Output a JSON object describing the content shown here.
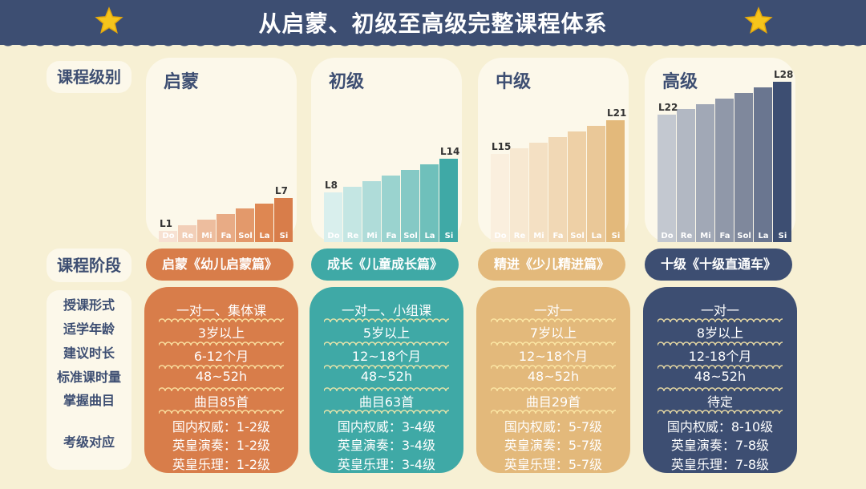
{
  "title": "从启蒙、初级至高级完整课程体系",
  "labels": {
    "level": "课程级别",
    "stage": "课程阶段",
    "rows": [
      "授课形式",
      "适学年龄",
      "建议时长",
      "标准课时量",
      "掌握曲目",
      "考级对应"
    ]
  },
  "notes": [
    "Do",
    "Re",
    "Mi",
    "Fa",
    "Sol",
    "La",
    "Si"
  ],
  "levels": [
    {
      "name": "启蒙",
      "start": "L1",
      "end": "L7",
      "stage": "启蒙《幼儿启蒙篇》",
      "format": "一对一、集体课",
      "age": "3岁以上",
      "duration": "6-12个月",
      "hours": "48~52h",
      "songs": "曲目85首",
      "exam1": "国内权威：1-2级",
      "exam2": "英皇演奏：1-2级",
      "exam3": "英皇乐理：1-2级",
      "color": "#d87d4a",
      "bar_colors": [
        "#f7e1d2",
        "#f2cfb8",
        "#edbd9e",
        "#e8ab85",
        "#e3996b",
        "#de8752",
        "#d87d4a"
      ],
      "bar_levels": [
        1,
        2,
        3,
        4,
        5,
        6,
        7
      ]
    },
    {
      "name": "初级",
      "start": "L8",
      "end": "L14",
      "stage": "成长《儿童成长篇》",
      "format": "一对一、小组课",
      "age": "5岁以上",
      "duration": "12~18个月",
      "hours": "48~52h",
      "songs": "曲目63首",
      "exam1": "国内权威：3-4级",
      "exam2": "英皇演奏：3-4级",
      "exam3": "英皇乐理：3-4级",
      "color": "#3fa9a6",
      "bar_colors": [
        "#d9efed",
        "#c4e6e3",
        "#afdcd9",
        "#9ad3cf",
        "#85c9c5",
        "#6fc0bb",
        "#3fa9a6"
      ],
      "bar_levels": [
        8,
        9,
        10,
        11,
        12,
        13,
        14
      ]
    },
    {
      "name": "中级",
      "start": "L15",
      "end": "L21",
      "stage": "精进《少儿精进篇》",
      "format": "一对一",
      "age": "7岁以上",
      "duration": "12~18个月",
      "hours": "48~52h",
      "songs": "曲目29首",
      "exam1": "国内权威：5-7级",
      "exam2": "英皇演奏：5-7级",
      "exam3": "英皇乐理：5-7级",
      "color": "#e3b97b",
      "bar_colors": [
        "#faefde",
        "#f7e8d1",
        "#f4e0c3",
        "#f1d8b5",
        "#eed0a6",
        "#eac898",
        "#e3b97b"
      ],
      "bar_levels": [
        15,
        16,
        17,
        18,
        19,
        20,
        21
      ]
    },
    {
      "name": "高级",
      "start": "L22",
      "end": "L28",
      "stage": "十级《十级直通车》",
      "format": "一对一",
      "age": "8岁以上",
      "duration": "12-18个月",
      "hours": "48~52h",
      "songs": "待定",
      "exam1": "国内权威：8-10级",
      "exam2": "英皇演奏：7-8级",
      "exam3": "英皇乐理：7-8级",
      "color": "#3d4e72",
      "bar_colors": [
        "#c3c8d0",
        "#b2b8c3",
        "#a1a8b6",
        "#9098a9",
        "#7f889c",
        "#6a7690",
        "#3d4e72"
      ],
      "bar_levels": [
        22,
        23,
        24,
        25,
        26,
        27,
        28
      ]
    }
  ]
}
